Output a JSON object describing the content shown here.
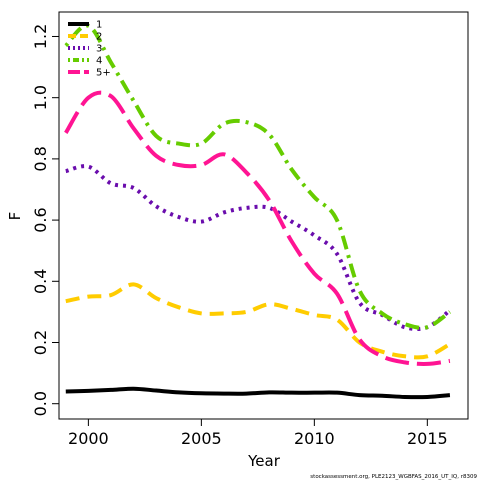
{
  "chart_data": {
    "type": "line",
    "xlabel": "Year",
    "ylabel": "F",
    "xlim": [
      1998.7,
      2016.8
    ],
    "ylim": [
      -0.05,
      1.28
    ],
    "xticks": [
      2000,
      2005,
      2010,
      2015
    ],
    "yticks": [
      0.0,
      0.2,
      0.4,
      0.6,
      0.8,
      1.0,
      1.2
    ],
    "ytick_labels": [
      "0.0",
      "0.2",
      "0.4",
      "0.6",
      "0.8",
      "1.0",
      "1.2"
    ],
    "legend_position": "top-left",
    "grid": false,
    "x": [
      1999,
      2000,
      2001,
      2002,
      2003,
      2004,
      2005,
      2006,
      2007,
      2008,
      2009,
      2010,
      2011,
      2012,
      2013,
      2014,
      2015,
      2016
    ],
    "series": [
      {
        "name": "1",
        "color": "#000000",
        "dash": "solid",
        "values": [
          0.04,
          0.042,
          0.045,
          0.049,
          0.043,
          0.037,
          0.034,
          0.033,
          0.033,
          0.037,
          0.036,
          0.036,
          0.036,
          0.028,
          0.026,
          0.022,
          0.022,
          0.028
        ]
      },
      {
        "name": "2",
        "color": "#FFCC00",
        "dash": "dashed",
        "values": [
          0.335,
          0.35,
          0.355,
          0.39,
          0.345,
          0.315,
          0.295,
          0.295,
          0.3,
          0.325,
          0.31,
          0.29,
          0.275,
          0.2,
          0.17,
          0.155,
          0.155,
          0.195
        ]
      },
      {
        "name": "3",
        "color": "#6A0DAD",
        "dash": "dotted",
        "values": [
          0.76,
          0.775,
          0.72,
          0.705,
          0.645,
          0.61,
          0.595,
          0.625,
          0.64,
          0.64,
          0.595,
          0.55,
          0.49,
          0.33,
          0.29,
          0.25,
          0.25,
          0.305
        ]
      },
      {
        "name": "4",
        "color": "#66CC00",
        "dash": "dotdash",
        "values": [
          1.17,
          1.235,
          1.115,
          0.99,
          0.875,
          0.85,
          0.85,
          0.915,
          0.92,
          0.88,
          0.765,
          0.675,
          0.6,
          0.37,
          0.295,
          0.26,
          0.25,
          0.3
        ]
      },
      {
        "name": "5+",
        "color": "#FF1493",
        "dash": "longdash",
        "values": [
          0.885,
          1.0,
          1.005,
          0.9,
          0.81,
          0.78,
          0.78,
          0.815,
          0.755,
          0.665,
          0.53,
          0.425,
          0.36,
          0.21,
          0.155,
          0.135,
          0.13,
          0.14
        ]
      }
    ]
  },
  "footer_text": "stockassessment.org, PLE2123_WGBFAS_2016_UT_IQ, r8309"
}
